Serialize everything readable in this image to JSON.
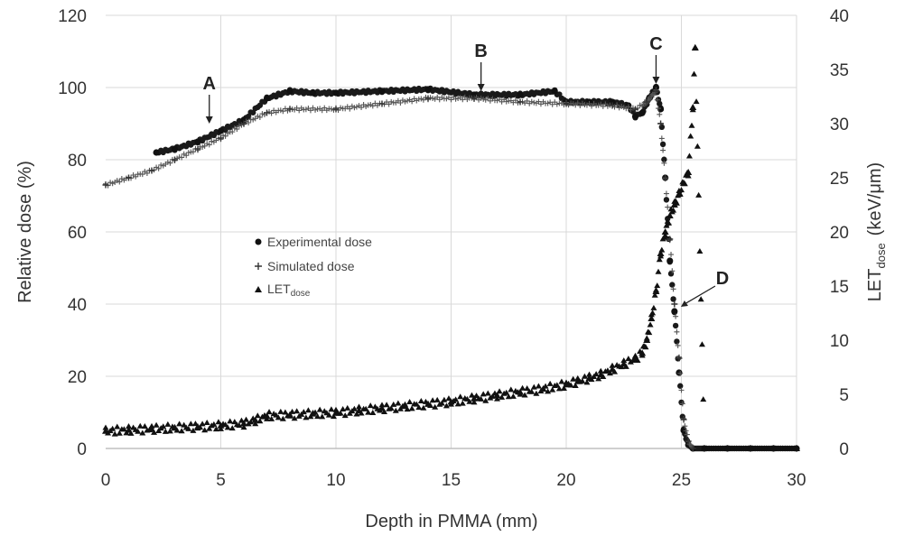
{
  "chart_data": {
    "type": "scatter",
    "xlabel": "Depth in PMMA (mm)",
    "ylabel": "Relative dose (%)",
    "y2label_main": "LET",
    "y2label_sub": "dose",
    "y2label_unit": "(keV/μm)",
    "xlim": [
      0,
      30
    ],
    "ylim": [
      0,
      120
    ],
    "y2lim": [
      0,
      40
    ],
    "xticks": [
      "0",
      "5",
      "10",
      "15",
      "20",
      "25",
      "30"
    ],
    "yticks": [
      "0",
      "20",
      "40",
      "60",
      "80",
      "100",
      "120"
    ],
    "y2ticks": [
      "0",
      "5",
      "10",
      "15",
      "20",
      "25",
      "30",
      "35",
      "40"
    ],
    "grid": true,
    "legend_placement": "center-left",
    "legend": [
      {
        "marker": "circle",
        "label_main": "Experimental dose",
        "label_sub": ""
      },
      {
        "marker": "plus",
        "label_main": "Simulated dose",
        "label_sub": ""
      },
      {
        "marker": "triangle",
        "label_main": "LET",
        "label_sub": "dose"
      }
    ],
    "annotations": [
      {
        "label": "A",
        "x": 4.5,
        "y": 90
      },
      {
        "label": "B",
        "x": 16.3,
        "y": 99
      },
      {
        "label": "C",
        "x": 23.9,
        "y": 101
      },
      {
        "label": "D",
        "x": 24.9,
        "y": 13,
        "axis": "y2"
      }
    ],
    "series": [
      {
        "name": "Experimental dose",
        "axis": "y",
        "marker": "circle",
        "x": [
          2.2,
          3.0,
          4.0,
          5.0,
          6.0,
          7.0,
          8.0,
          9.0,
          10.0,
          12.0,
          14.0,
          16.0,
          18.0,
          19.5,
          20.0,
          21.0,
          22.0,
          22.7,
          23.0,
          23.3,
          23.6,
          23.9,
          24.1,
          24.3,
          24.5,
          24.7,
          24.9,
          25.1,
          25.3,
          25.5,
          26.0,
          27.0,
          28.0,
          29.0,
          30.0
        ],
        "values": [
          82,
          83,
          85,
          88,
          91,
          97,
          99,
          98.5,
          98.5,
          99,
          99.5,
          98,
          98,
          99,
          96,
          96,
          96,
          95,
          92,
          93,
          97,
          100,
          94,
          75,
          52,
          38,
          21,
          5,
          1,
          0,
          0,
          0,
          0,
          0,
          0
        ]
      },
      {
        "name": "Simulated dose",
        "axis": "y",
        "marker": "plus",
        "x": [
          0,
          1,
          2,
          3,
          4,
          5,
          6,
          7,
          8,
          10,
          12,
          14,
          16,
          18,
          20,
          22,
          23,
          23.5,
          23.9,
          24.1,
          24.3,
          24.5,
          24.7,
          24.9,
          25.1,
          25.3,
          25.5
        ],
        "values": [
          73,
          75,
          77,
          80,
          83,
          86,
          90,
          93,
          94,
          94,
          95.5,
          97,
          97,
          96,
          95.5,
          95,
          94,
          96,
          99,
          90,
          75,
          58,
          40,
          25,
          8,
          2,
          0
        ]
      },
      {
        "name": "LET_dose",
        "axis": "y2",
        "marker": "triangle",
        "x": [
          0,
          1,
          2,
          3,
          4,
          5,
          6,
          6.5,
          7,
          8,
          9,
          10,
          11,
          12,
          13,
          14,
          15,
          16,
          17,
          18,
          19,
          20,
          20.5,
          21,
          21.5,
          22,
          22.5,
          23,
          23.3,
          23.5,
          23.7,
          23.9,
          24.1,
          24.3,
          24.5,
          24.7,
          24.9,
          25.1,
          25.3,
          25.5,
          25.6,
          26,
          27,
          28,
          29,
          30
        ],
        "values": [
          1.6,
          1.7,
          1.8,
          1.9,
          2.0,
          2.1,
          2.3,
          2.6,
          3.0,
          3.1,
          3.2,
          3.3,
          3.5,
          3.7,
          3.9,
          4.1,
          4.3,
          4.6,
          4.9,
          5.2,
          5.5,
          5.9,
          6.2,
          6.5,
          6.8,
          7.3,
          7.8,
          8.3,
          8.8,
          10,
          12,
          14.5,
          18,
          20,
          21.5,
          22.5,
          23.5,
          24.5,
          25.5,
          31.5,
          37,
          0,
          0,
          0,
          0,
          0
        ]
      }
    ]
  }
}
